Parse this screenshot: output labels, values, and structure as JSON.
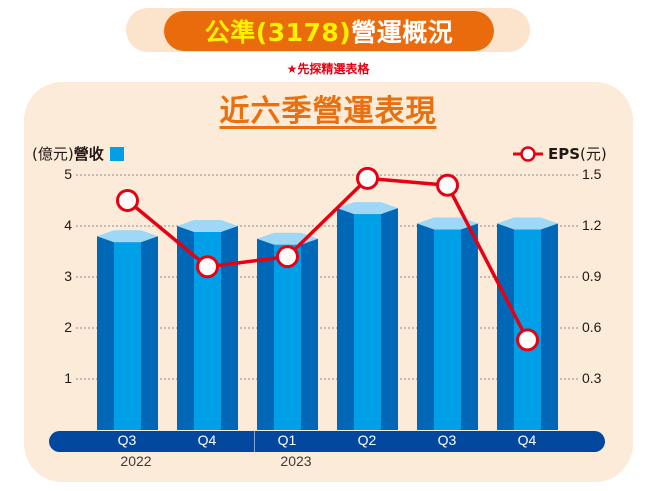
{
  "header": {
    "title_highlight": "公準(3178)",
    "title_rest": "營運概況",
    "subtitle": "★先探精選表格"
  },
  "panel": {
    "title": "近六季營運表現"
  },
  "legend": {
    "left_unit": "(億元)",
    "left_label": "營收",
    "right_label": "EPS",
    "right_unit": "(元)"
  },
  "colors": {
    "header_orange": "#ea6b0c",
    "header_yellow": "#fff200",
    "panel_bg": "#fbebd8",
    "title_orange": "#e8700e",
    "bar_light": "#00a0e9",
    "bar_dark": "#0068b7",
    "bar_top": "#9fd7f7",
    "line_red": "#e60012",
    "axis_blue": "#00479d"
  },
  "axes": {
    "left_ticks": [
      "5",
      "4",
      "3",
      "2",
      "1"
    ],
    "right_ticks": [
      "1.5",
      "1.2",
      "0.9",
      "0.6",
      "0.3"
    ],
    "quarters": [
      "Q3",
      "Q4",
      "Q1",
      "Q2",
      "Q3",
      "Q4"
    ],
    "years": [
      "2022",
      "2023"
    ]
  },
  "chart_data": {
    "type": "bar",
    "title": "近六季營運表現",
    "categories": [
      "2022 Q3",
      "2022 Q4",
      "2023 Q1",
      "2023 Q2",
      "2023 Q3",
      "2023 Q4"
    ],
    "series": [
      {
        "name": "營收",
        "type": "bar",
        "unit": "億元",
        "axis": "left",
        "values": [
          3.8,
          4.0,
          3.75,
          4.35,
          4.05,
          4.05
        ]
      },
      {
        "name": "EPS",
        "type": "line",
        "unit": "元",
        "axis": "right",
        "values": [
          1.35,
          0.96,
          1.02,
          1.48,
          1.44,
          0.53
        ]
      }
    ],
    "ylabel": "(億元)營收",
    "y2label": "EPS(元)",
    "ylim": [
      0,
      5
    ],
    "y2lim": [
      0,
      1.5
    ],
    "yticks": [
      1,
      2,
      3,
      4,
      5
    ],
    "y2ticks": [
      0.3,
      0.6,
      0.9,
      1.2,
      1.5
    ],
    "grid": true,
    "legend_position": "top"
  }
}
